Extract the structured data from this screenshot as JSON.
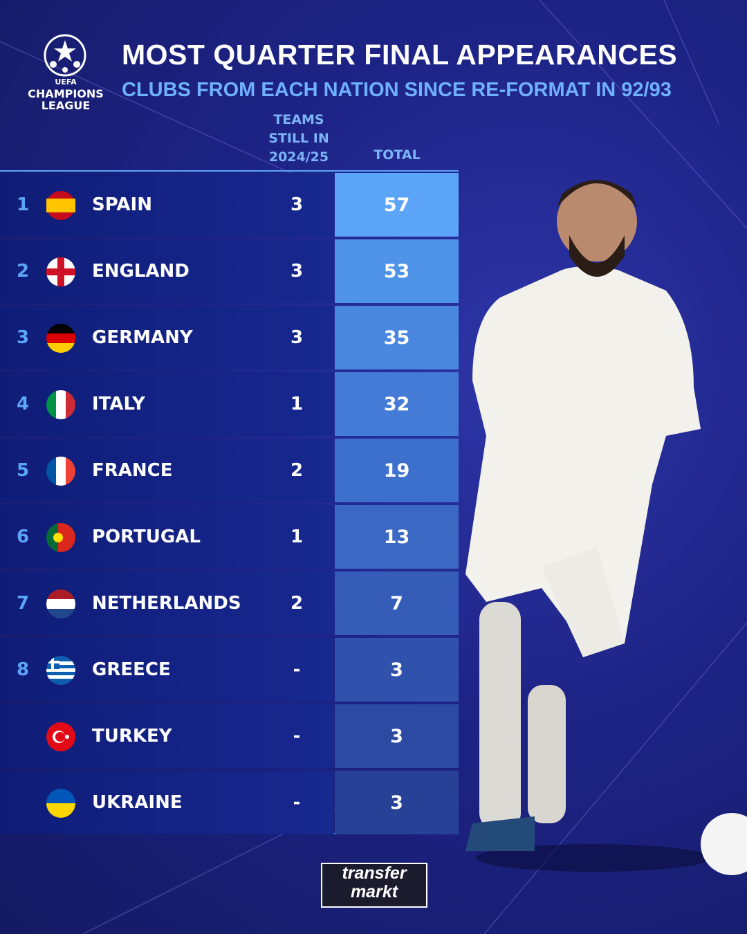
{
  "header": {
    "logo": {
      "top": "UEFA",
      "middle": "CHAMPIONS",
      "bottom": "LEAGUE"
    },
    "title": "MOST QUARTER FINAL APPEARANCES",
    "subtitle": "CLUBS FROM EACH NATION SINCE RE-FORMAT IN 92/93"
  },
  "table": {
    "columns": {
      "teams": [
        "TEAMS",
        "STILL IN",
        "2024/25"
      ],
      "total": "TOTAL"
    },
    "rows": [
      {
        "rank": 1,
        "country": "SPAIN",
        "teams": 3,
        "total": 57
      },
      {
        "rank": 2,
        "country": "ENGLAND",
        "teams": 3,
        "total": 53
      },
      {
        "rank": 3,
        "country": "GERMANY",
        "teams": 3,
        "total": 35
      },
      {
        "rank": 4,
        "country": "ITALY",
        "teams": 1,
        "total": 32
      },
      {
        "rank": 5,
        "country": "FRANCE",
        "teams": 2,
        "total": 19
      },
      {
        "rank": 6,
        "country": "PORTUGAL",
        "teams": 1,
        "total": 13
      },
      {
        "rank": 7,
        "country": "NETHERLANDS",
        "teams": 2,
        "total": 7
      },
      {
        "rank": 8,
        "country": "GREECE",
        "teams": "-",
        "total": 3
      },
      {
        "country": "TURKEY",
        "teams": "-",
        "total": 3
      },
      {
        "country": "UKRAINE",
        "teams": "-",
        "total": 3
      }
    ]
  },
  "footer": {
    "brand": [
      "transfer",
      "markt"
    ]
  }
}
